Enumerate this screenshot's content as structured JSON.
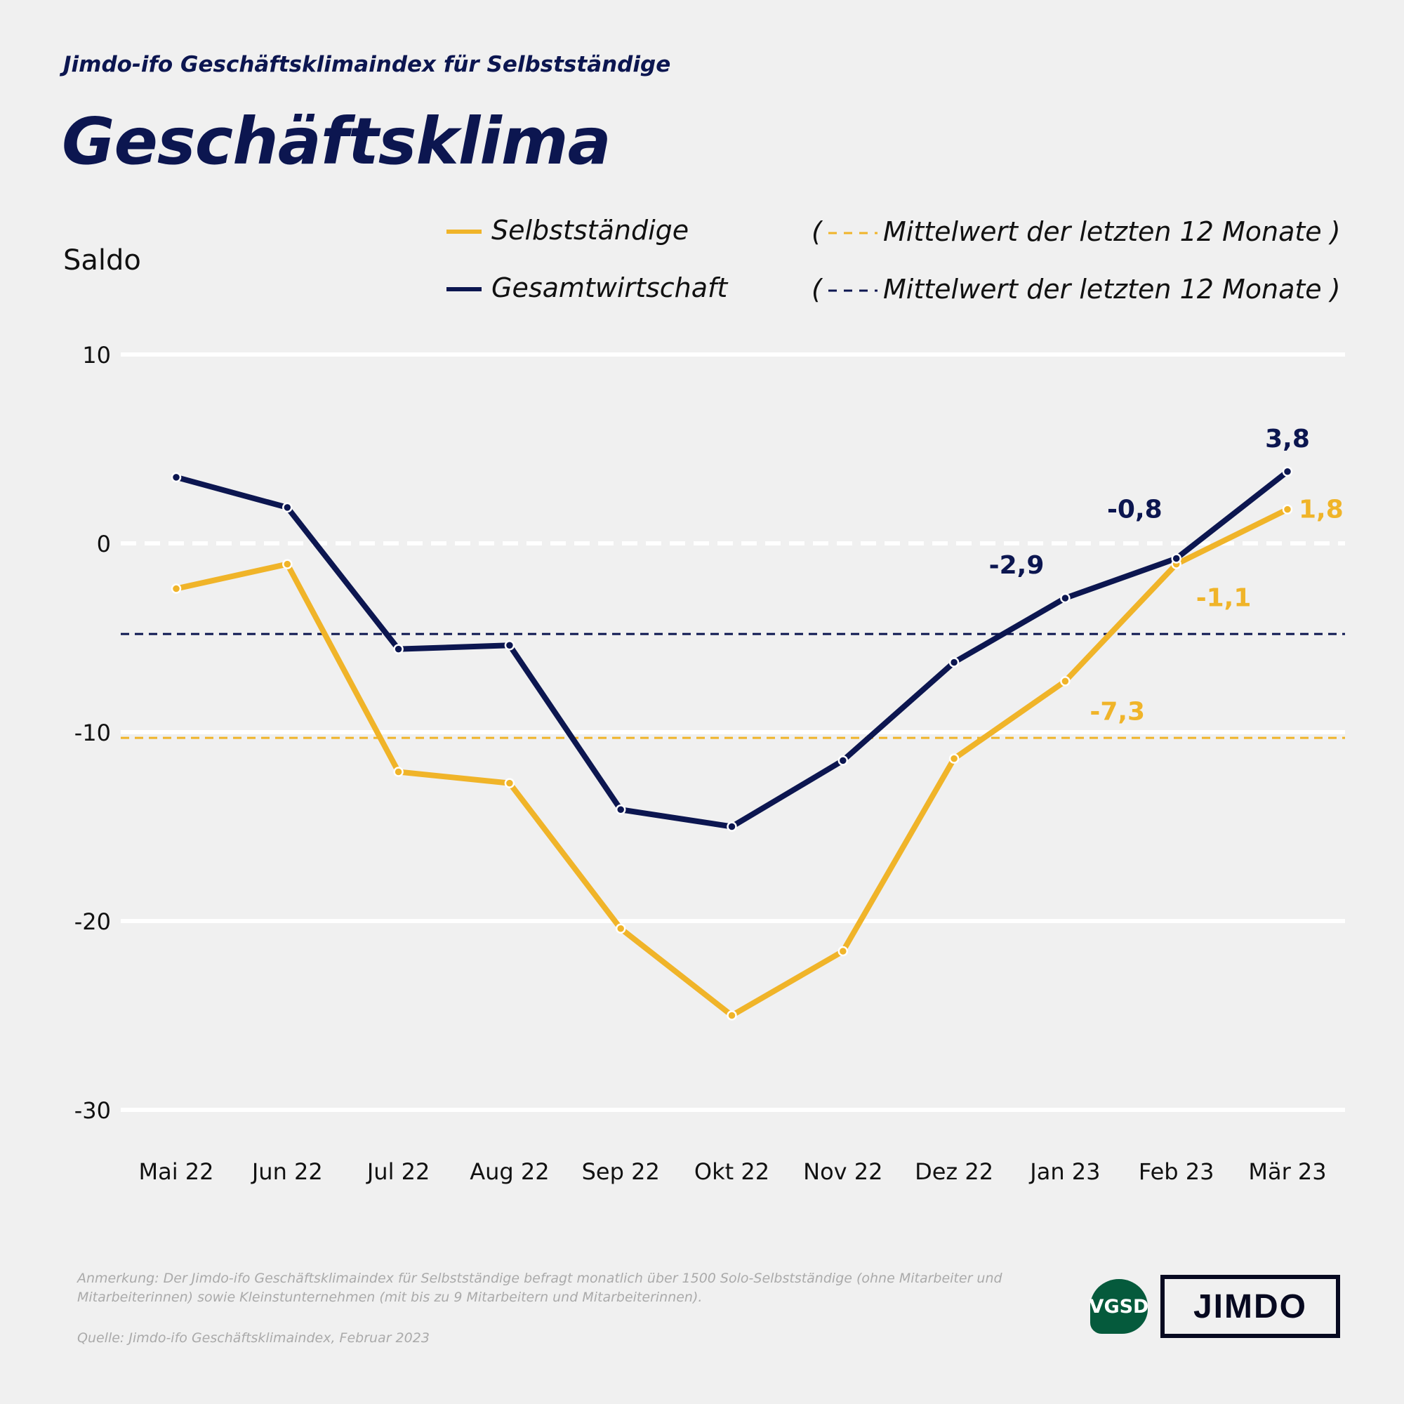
{
  "header": {
    "subtitle": "Jimdo-ifo Geschäftsklimaindex für Selbstständige",
    "title": "Geschäftsklima"
  },
  "footer": {
    "note": "Anmerkung: Der Jimdo-ifo Geschäftsklimaindex für Selbstständige befragt monatlich über 1500 Solo-Selbstständige (ohne Mitarbeiter und Mitarbeiterinnen) sowie Kleinstunternehmen (mit bis zu 9 Mitarbeitern und Mitarbeiterinnen).",
    "source": "Quelle: Jimdo-ifo Geschäftsklimaindex, Februar 2023",
    "logos": [
      "VGSD",
      "JIMDO"
    ]
  },
  "colors": {
    "selbst": "#f0b429",
    "gesamt": "#0c1650",
    "background": "#f0f0f0"
  },
  "chart_data": {
    "type": "line",
    "title": "Geschäftsklima",
    "ylabel": "Saldo",
    "ylim": [
      -30,
      10
    ],
    "yticks": [
      "10",
      "0",
      "-10",
      "-20",
      "-30"
    ],
    "grid": true,
    "legend_placement": "top",
    "categories": [
      "Mai 22",
      "Jun 22",
      "Jul 22",
      "Aug 22",
      "Sep 22",
      "Okt 22",
      "Nov 22",
      "Dez 22",
      "Jan 23",
      "Feb 23",
      "Mär 23"
    ],
    "series": [
      {
        "name": "Selbstständige",
        "color": "#f0b429",
        "values": [
          -2.4,
          -1.1,
          -12.1,
          -12.7,
          -20.4,
          -25.0,
          -21.6,
          -11.4,
          -7.3,
          -1.1,
          1.8
        ],
        "labels": [
          "-7,3",
          "-1,1",
          "1,8"
        ],
        "mean": {
          "name": "Mittelwert der letzten 12 Monate",
          "value": -10.3
        }
      },
      {
        "name": "Gesamtwirtschaft",
        "color": "#0c1650",
        "values": [
          3.5,
          1.9,
          -5.6,
          -5.4,
          -14.1,
          -15.0,
          -11.5,
          -6.3,
          -2.9,
          -0.8,
          3.8
        ],
        "labels": [
          "-2,9",
          "-0,8",
          "3,8"
        ],
        "mean": {
          "name": "Mittelwert der letzten 12 Monate",
          "value": -4.8
        }
      }
    ]
  }
}
